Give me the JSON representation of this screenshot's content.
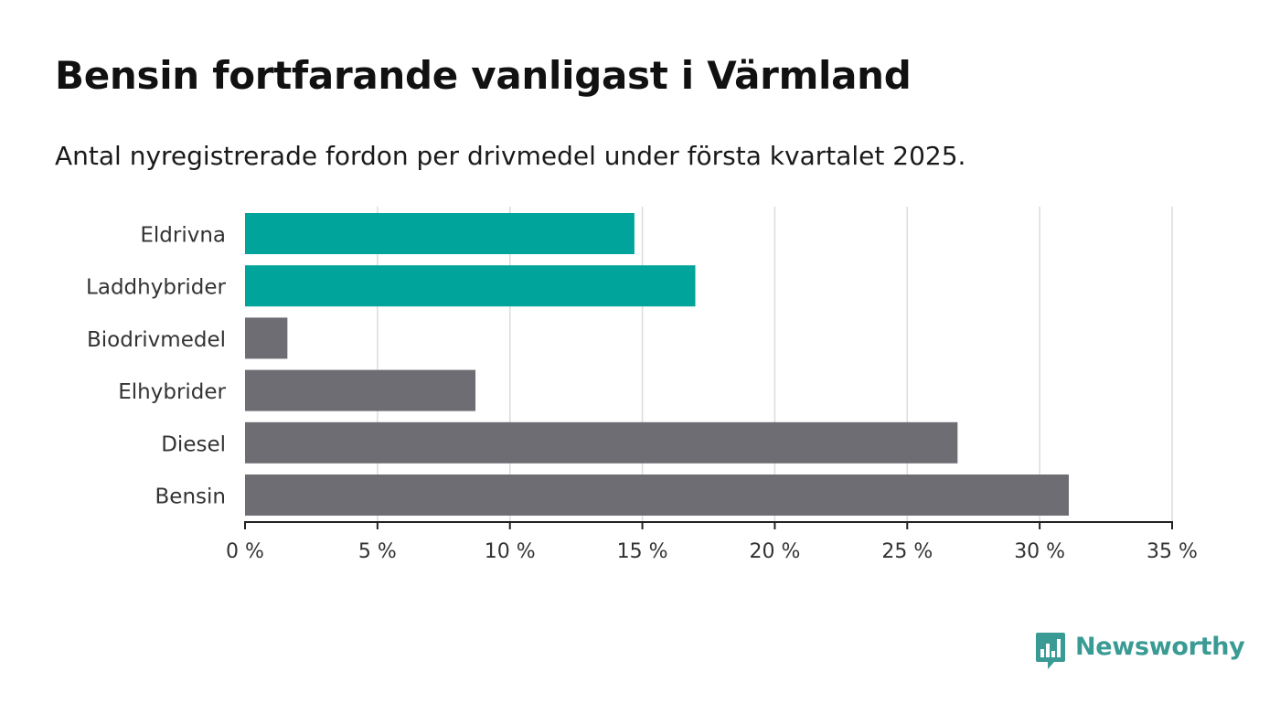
{
  "header": {
    "title": "Bensin fortfarande vanligast i Värmland",
    "subtitle": "Antal nyregistrerade fordon per drivmedel under första kvartalet 2025."
  },
  "chart_data": {
    "type": "bar",
    "orientation": "horizontal",
    "categories": [
      "Eldrivna",
      "Laddhybrider",
      "Biodrivmedel",
      "Elhybrider",
      "Diesel",
      "Bensin"
    ],
    "values": [
      14.7,
      17.0,
      1.6,
      8.7,
      26.9,
      31.1
    ],
    "bar_colors": [
      "#00a49a",
      "#00a49a",
      "#6e6d73",
      "#6e6d73",
      "#6e6d73",
      "#6e6d73"
    ],
    "xlim": [
      0,
      35
    ],
    "x_ticks": [
      0,
      5,
      10,
      15,
      20,
      25,
      30,
      35
    ],
    "x_tick_labels": [
      "0 %",
      "5 %",
      "10 %",
      "15 %",
      "20 %",
      "25 %",
      "30 %",
      "35 %"
    ],
    "xlabel": "",
    "ylabel": "",
    "grid": true
  },
  "branding": {
    "logo_text": "Newsworthy",
    "logo_icon": "bar-chart-speech-bubble-icon",
    "logo_color": "#3a9a94"
  }
}
